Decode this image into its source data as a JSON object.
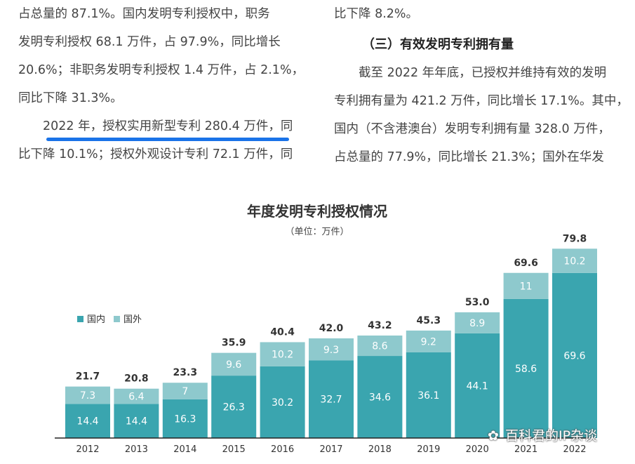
{
  "text": {
    "left": [
      "占总量的 87.1%。国内发明专利授权中，职务",
      "发明专利授权 68.1 万件，占 97.9%，同比增长",
      "20.6%；非职务发明专利授权 1.4 万件，占 2.1%，",
      "同比下降 31.3%。",
      "2022 年，授权实用新型专利 280.4 万件，同",
      "比下降 10.1%；授权外观设计专利 72.1 万件，同"
    ],
    "right_top": "比下降 8.2%。",
    "heading": "（三）有效发明专利拥有量",
    "right": [
      "截至 2022 年年底，已授权并维持有效的发明",
      "专利拥有量为 421.2 万件，同比增长 17.1%。其中，",
      "国内（不含港澳台）发明专利拥有量 328.0 万件，",
      "占总量的 77.9%，同比增长 21.3%；国外在华发"
    ]
  },
  "watermark": "百科君的IP杂谈",
  "colors": {
    "domestic": "#3aa5af",
    "foreign": "#8ec9cd",
    "axis": "#222222",
    "highlight": "#1a73e8"
  },
  "chart_data": {
    "type": "bar",
    "stacked": true,
    "title": "年度发明专利授权情况",
    "subtitle": "（单位：万件）",
    "categories": [
      "2012",
      "2013",
      "2014",
      "2015",
      "2016",
      "2017",
      "2018",
      "2019",
      "2020",
      "2021",
      "2022"
    ],
    "series": [
      {
        "name": "国内",
        "values": [
          14.4,
          14.4,
          16.3,
          26.3,
          30.2,
          32.7,
          34.6,
          36.1,
          44.1,
          58.6,
          69.6
        ]
      },
      {
        "name": "国外",
        "values": [
          7.3,
          6.4,
          7.0,
          9.6,
          10.2,
          9.3,
          8.6,
          9.2,
          8.9,
          11.0,
          10.2
        ]
      }
    ],
    "totals": [
      21.7,
      20.8,
      23.3,
      35.9,
      40.4,
      42.0,
      43.2,
      45.3,
      53.0,
      69.6,
      79.8
    ],
    "legend_position": "left",
    "ylim": [
      0,
      80
    ]
  }
}
